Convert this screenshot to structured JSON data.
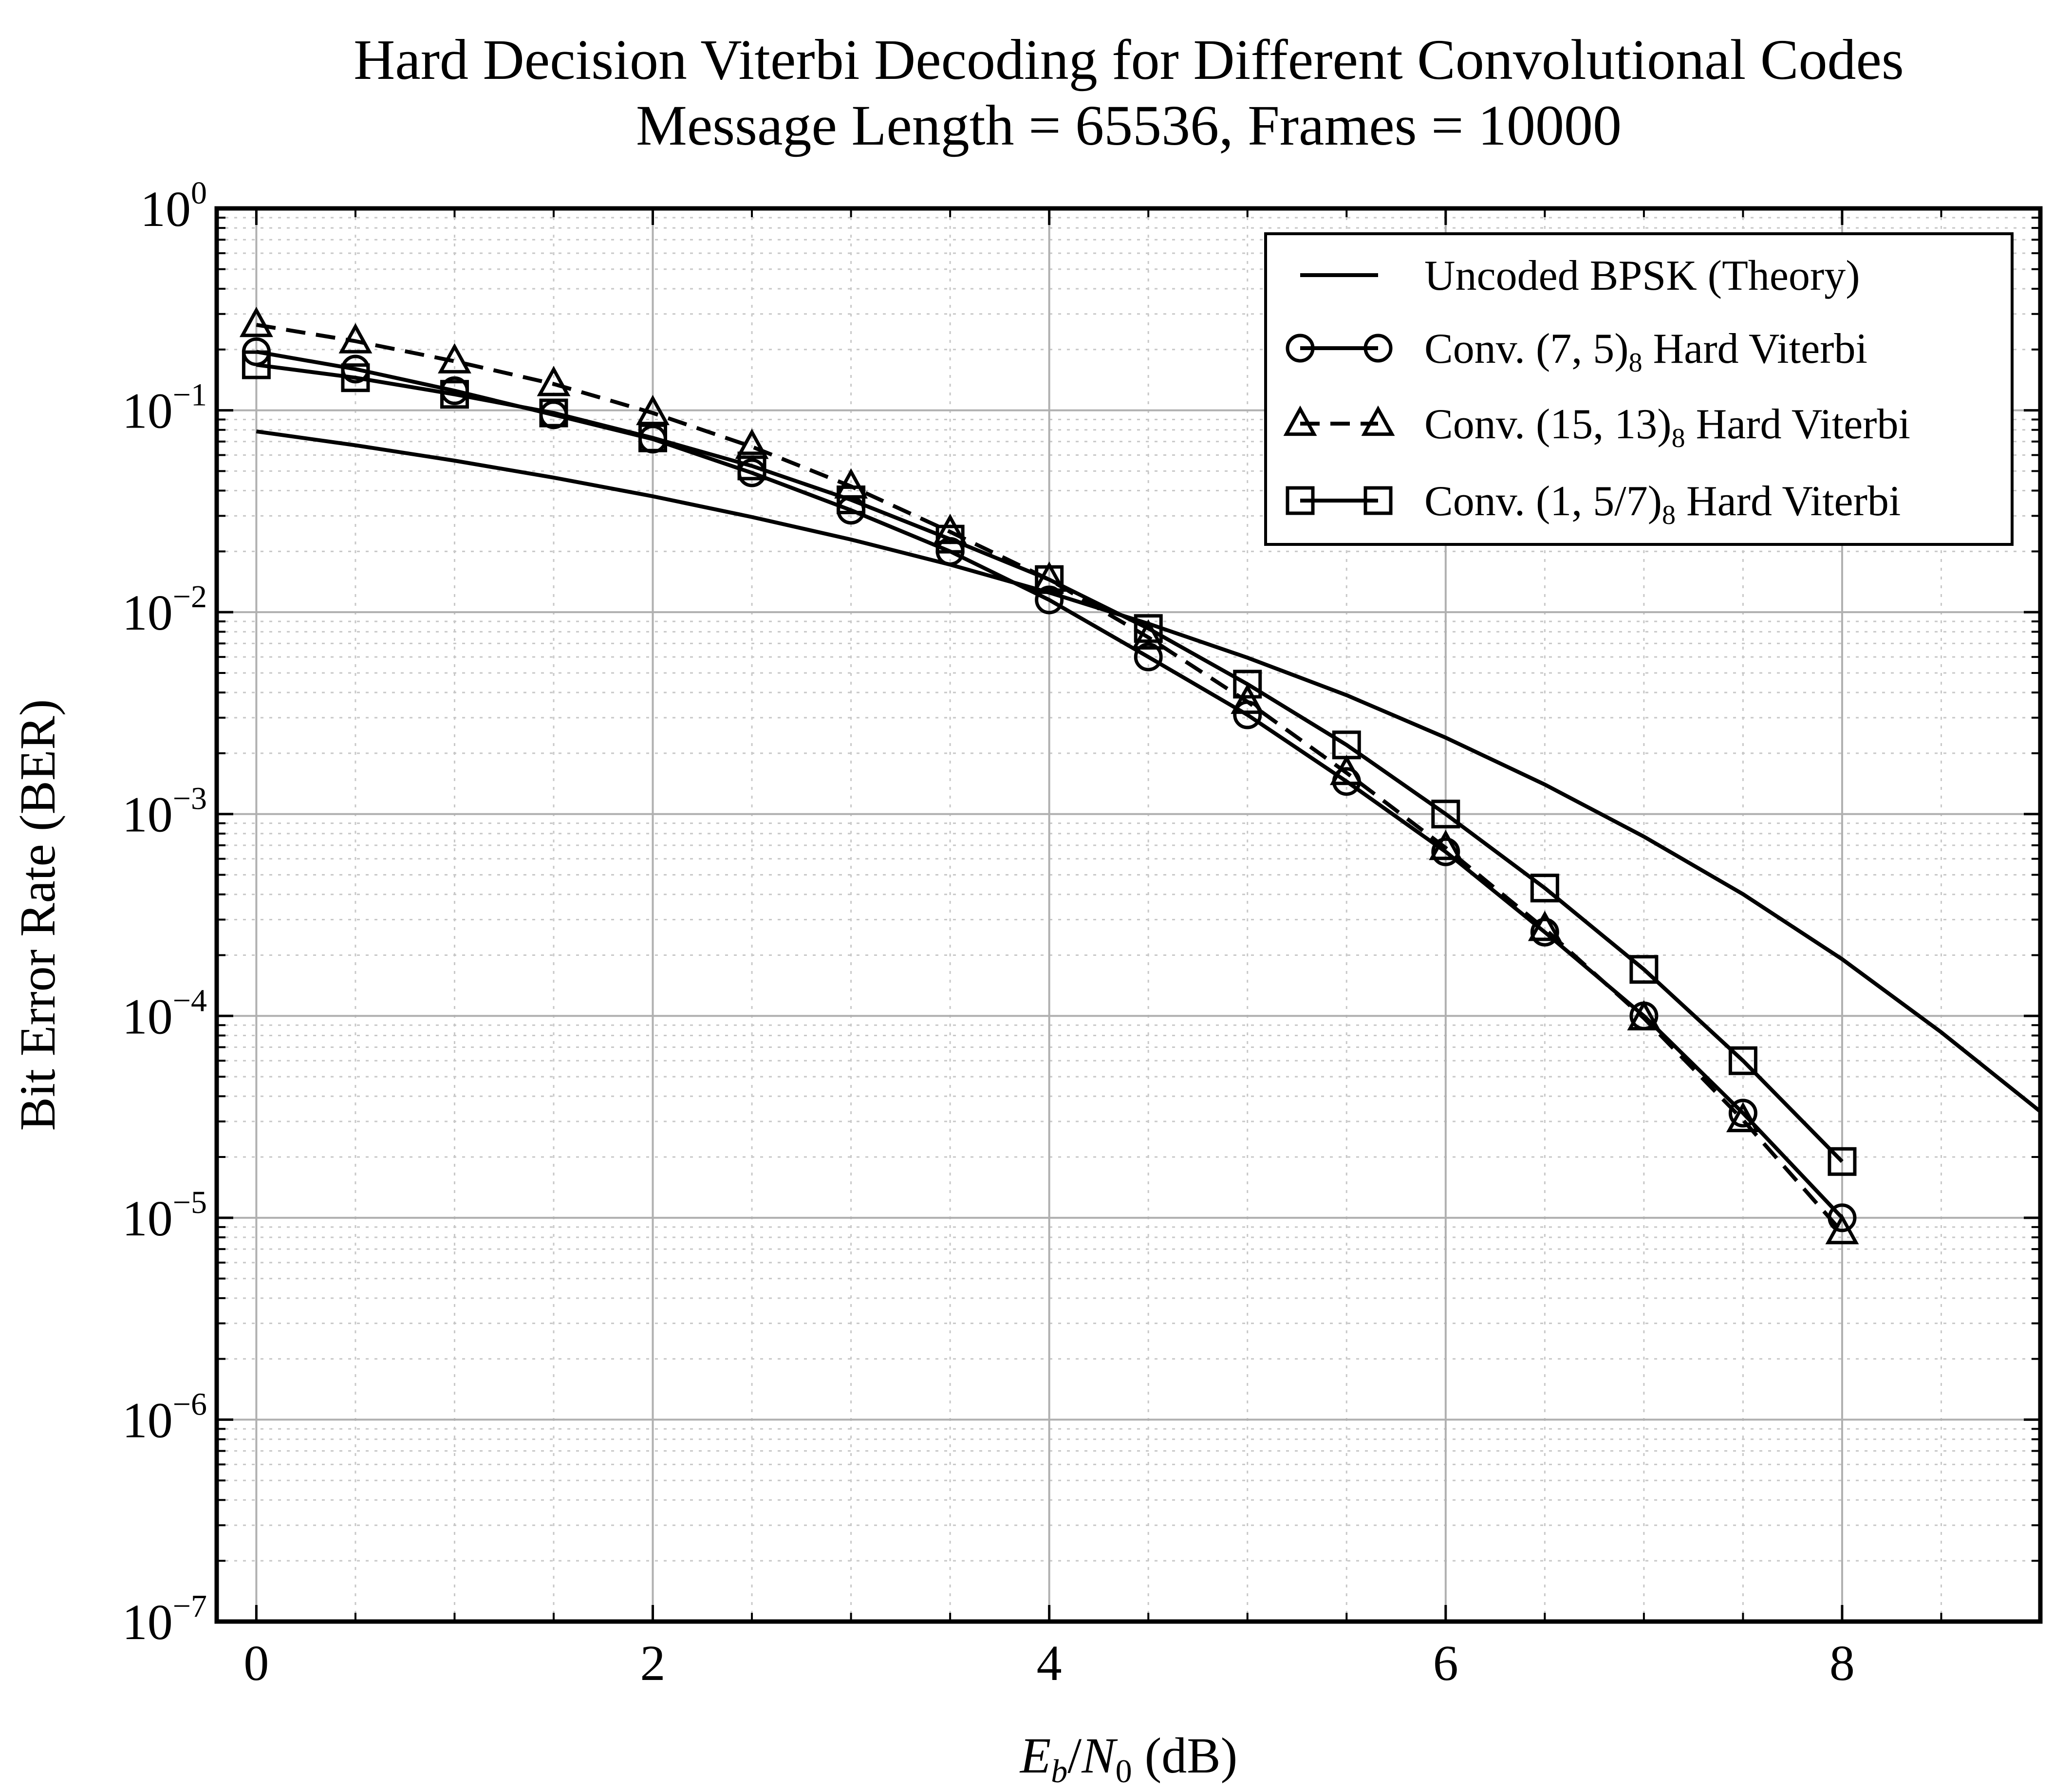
{
  "chart_data": {
    "type": "line",
    "title_lines": [
      "Hard Decision Viterbi Decoding for Different Convolutional Codes",
      "Message Length = 65536, Frames = 10000"
    ],
    "xlabel": {
      "E": "E",
      "E_sub": "b",
      "slash": "/",
      "N": "N",
      "N_sub": "0",
      "unit": " (dB)"
    },
    "ylabel": "Bit Error Rate (BER)",
    "xlim": [
      -0.2,
      9.0
    ],
    "ylim": [
      1e-07,
      1
    ],
    "yscale": "log",
    "grid": true,
    "legend_position": "top-right",
    "x_ticks": [
      "0",
      "2",
      "4",
      "6",
      "8"
    ],
    "y_ticks": [
      {
        "base": "10",
        "exp": "0"
      },
      {
        "base": "10",
        "exp": "−1"
      },
      {
        "base": "10",
        "exp": "−2"
      },
      {
        "base": "10",
        "exp": "−3"
      },
      {
        "base": "10",
        "exp": "−4"
      },
      {
        "base": "10",
        "exp": "−5"
      },
      {
        "base": "10",
        "exp": "−6"
      },
      {
        "base": "10",
        "exp": "−7"
      }
    ],
    "series": [
      {
        "name": "Uncoded BPSK (Theory)",
        "legend_label": {
          "pre": "Uncoded BPSK (Theory)",
          "sub": "",
          "post": ""
        },
        "marker": "none",
        "dash": "solid",
        "x": [
          0,
          0.5,
          1,
          1.5,
          2,
          2.5,
          3,
          3.5,
          4,
          4.5,
          5,
          5.5,
          6,
          6.5,
          7,
          7.5,
          8,
          8.5,
          9
        ],
        "y": [
          0.0786,
          0.0671,
          0.0563,
          0.0464,
          0.0375,
          0.0296,
          0.0229,
          0.0172,
          0.0125,
          0.00877,
          0.00595,
          0.00388,
          0.00239,
          0.0014,
          0.000773,
          0.000401,
          0.000191,
          8.3e-05,
          3.36e-05
        ]
      },
      {
        "name": "Conv. (7,5)8 Hard Viterbi",
        "legend_label": {
          "pre": "Conv. (7, 5)",
          "sub": "8",
          "post": " Hard Viterbi"
        },
        "marker": "circle",
        "dash": "solid",
        "x": [
          0,
          0.5,
          1,
          1.5,
          2,
          2.5,
          3,
          3.5,
          4,
          4.5,
          5,
          5.5,
          6,
          6.5,
          7,
          7.5,
          8
        ],
        "y": [
          0.195,
          0.16,
          0.125,
          0.095,
          0.072,
          0.049,
          0.032,
          0.02,
          0.0115,
          0.006,
          0.0031,
          0.00145,
          0.00065,
          0.00026,
          0.0001,
          3.3e-05,
          1e-05
        ]
      },
      {
        "name": "Conv. (15,13)8 Hard Viterbi",
        "legend_label": {
          "pre": "Conv. (15, 13)",
          "sub": "8",
          "post": " Hard Viterbi"
        },
        "marker": "triangle",
        "dash": "dashed",
        "x": [
          0,
          0.5,
          1,
          1.5,
          2,
          2.5,
          3,
          3.5,
          4,
          4.5,
          5,
          5.5,
          6,
          6.5,
          7,
          7.5,
          8
        ],
        "y": [
          0.265,
          0.22,
          0.175,
          0.135,
          0.097,
          0.066,
          0.042,
          0.025,
          0.0145,
          0.0075,
          0.0036,
          0.0016,
          0.00068,
          0.00027,
          9.75e-05,
          3.05e-05,
          8.5e-06
        ]
      },
      {
        "name": "Conv. (1,5/7)8 Hard Viterbi",
        "legend_label": {
          "pre": "Conv. (1, 5/7)",
          "sub": "8",
          "post": " Hard Viterbi"
        },
        "marker": "square",
        "dash": "solid",
        "x": [
          0,
          0.5,
          1,
          1.5,
          2,
          2.5,
          3,
          3.5,
          4,
          4.5,
          5,
          5.5,
          6,
          6.5,
          7,
          7.5,
          8
        ],
        "y": [
          0.168,
          0.145,
          0.12,
          0.097,
          0.073,
          0.053,
          0.036,
          0.023,
          0.0145,
          0.0083,
          0.0044,
          0.0022,
          0.001,
          0.00043,
          0.00017,
          6e-05,
          1.9e-05
        ]
      }
    ],
    "colors": {
      "line": "#000000",
      "grid": "#b0b0b0",
      "background": "#ffffff"
    }
  }
}
